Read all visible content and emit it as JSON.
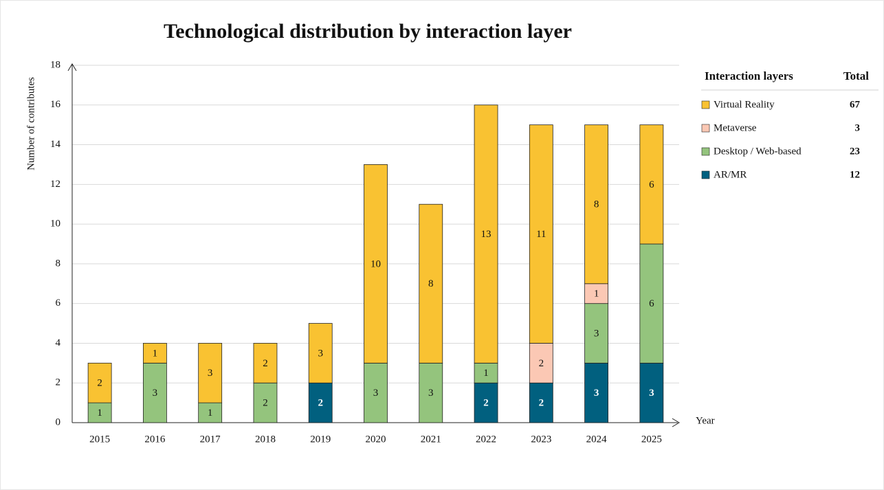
{
  "chart_data": {
    "type": "stacked-bar",
    "title": "Technological distribution by interaction layer",
    "x_label": "Year",
    "y_label": "Number of contributes",
    "categories": [
      "2015",
      "2016",
      "2017",
      "2018",
      "2019",
      "2020",
      "2021",
      "2022",
      "2023",
      "2024",
      "2025"
    ],
    "series": [
      {
        "name": "AR/MR",
        "color": "#01607f",
        "total": 12,
        "values": [
          null,
          null,
          null,
          null,
          2,
          null,
          null,
          2,
          2,
          3,
          3
        ]
      },
      {
        "name": "Desktop / Web-based",
        "color": "#94c47d",
        "total": 23,
        "values": [
          1,
          3,
          1,
          2,
          null,
          3,
          3,
          1,
          null,
          3,
          6
        ]
      },
      {
        "name": "Metaverse",
        "color": "#fbc8b4",
        "total": 3,
        "values": [
          null,
          null,
          null,
          null,
          null,
          null,
          null,
          null,
          2,
          1,
          null
        ]
      },
      {
        "name": "Virtual Reality",
        "color": "#f9c232",
        "total": 67,
        "values": [
          2,
          1,
          3,
          2,
          3,
          10,
          8,
          13,
          11,
          8,
          6
        ]
      }
    ],
    "legend_title": "Interaction layers",
    "legend_total_title": "Total",
    "ylim": [
      0,
      18
    ],
    "yticks": [
      0,
      2,
      4,
      6,
      8,
      10,
      12,
      14,
      16,
      18
    ],
    "grid": true
  }
}
